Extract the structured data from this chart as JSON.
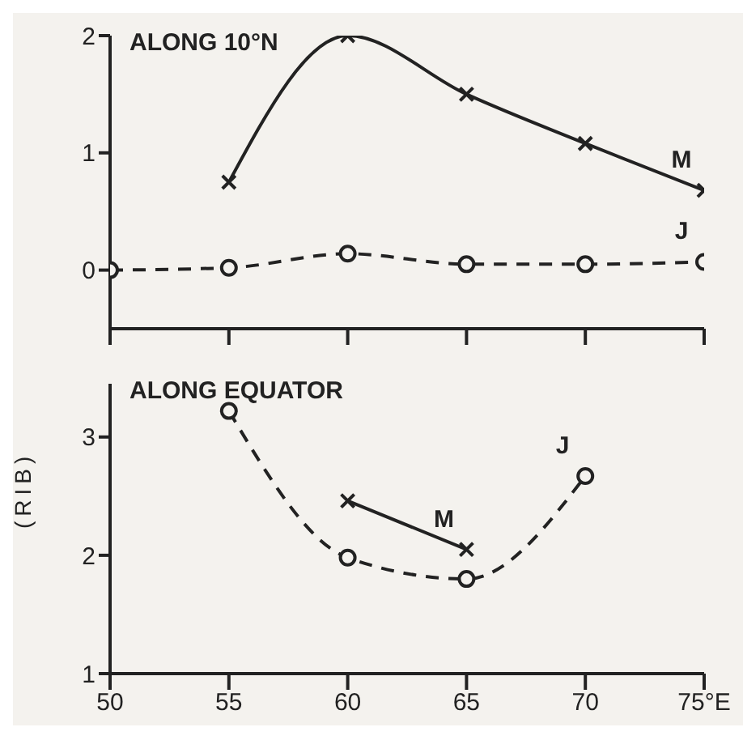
{
  "chart_data": [
    {
      "type": "line",
      "title": "ALONG 10°N",
      "xlim": [
        50,
        75
      ],
      "xticks": [
        {
          "value": 50,
          "label": null
        },
        {
          "value": 55,
          "label": null
        },
        {
          "value": 60,
          "label": null
        },
        {
          "value": 65,
          "label": null
        },
        {
          "value": 70,
          "label": null
        },
        {
          "value": 75,
          "label": null
        }
      ],
      "ylim": [
        -0.5,
        2
      ],
      "yticks": [
        0,
        1,
        2
      ],
      "tick_labels": "y",
      "grid": false,
      "legend": false,
      "series": [
        {
          "name": "M",
          "color": "#222222",
          "marker": "cross",
          "line_style": "solid",
          "x": [
            55,
            60,
            65,
            70,
            75
          ],
          "values": [
            0.75,
            2.0,
            1.5,
            1.08,
            0.68
          ]
        },
        {
          "name": "J",
          "color": "#222222",
          "marker": "circle",
          "line_style": "dashed",
          "x": [
            50,
            55,
            60,
            65,
            70,
            75
          ],
          "values": [
            0,
            0.02,
            0.14,
            0.05,
            0.05,
            0.07
          ]
        }
      ]
    },
    {
      "type": "line",
      "title": "ALONG EQUATOR",
      "ylabel": "(RIB)",
      "xlim": [
        50,
        75
      ],
      "xticks": [
        50,
        55,
        60,
        65,
        70,
        {
          "value": 75,
          "label": "75°E"
        }
      ],
      "ylim": [
        1,
        3.45
      ],
      "yticks": [
        1,
        2,
        3
      ],
      "grid": false,
      "legend": false,
      "series": [
        {
          "name": "J",
          "color": "#222222",
          "marker": "circle",
          "line_style": "dashed",
          "x": [
            55,
            60,
            65,
            70
          ],
          "values": [
            3.22,
            1.98,
            1.8,
            2.67
          ]
        },
        {
          "name": "M",
          "color": "#222222",
          "marker": "cross",
          "line_style": "solid",
          "x": [
            60,
            65
          ],
          "values": [
            2.46,
            2.05
          ]
        }
      ]
    }
  ]
}
